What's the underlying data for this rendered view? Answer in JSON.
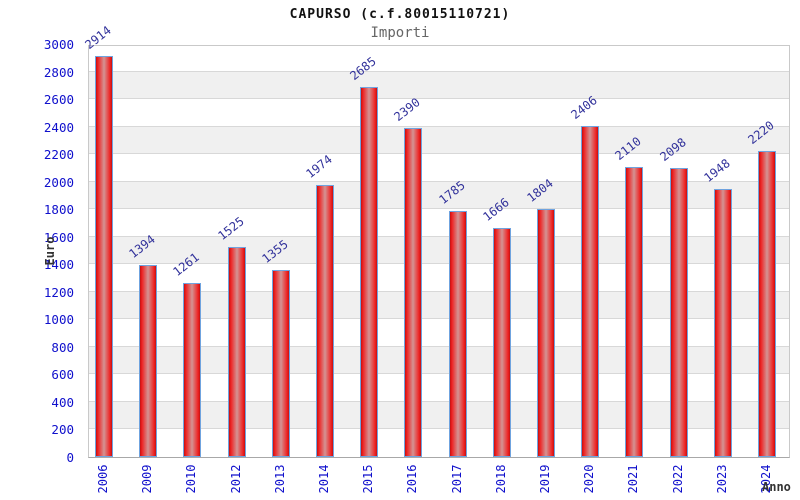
{
  "chart_data": {
    "type": "bar",
    "title": "CAPURSO (c.f.80015110721)",
    "subtitle": "Importi",
    "ylabel": "Euro",
    "xlabel": "Anno",
    "categories": [
      "2006",
      "2009",
      "2010",
      "2012",
      "2013",
      "2014",
      "2015",
      "2016",
      "2017",
      "2018",
      "2019",
      "2020",
      "2021",
      "2022",
      "2023",
      "2024"
    ],
    "values": [
      2914,
      1394,
      1261,
      1525,
      1355,
      1974,
      2685,
      2390,
      1785,
      1666,
      1804,
      2406,
      2110,
      2098,
      1948,
      2220
    ],
    "ylim": [
      0,
      3000
    ],
    "yticks": [
      0,
      200,
      400,
      600,
      800,
      1000,
      1200,
      1400,
      1600,
      1800,
      2000,
      2200,
      2400,
      2600,
      2800,
      3000
    ],
    "grid": true,
    "legend_position": "none",
    "colors": {
      "bar_edge_red": "#c41010",
      "bar_bright_red": "#ee2222",
      "bar_mid_red": "#d49393",
      "bar_border_blue": "#6fa3df",
      "axis_tick_blue": "#1010cc",
      "value_label_blue": "#32329b",
      "band_gray": "#f0f0f0",
      "grid_line_gray": "#d8d8d8",
      "title_black": "#111111",
      "subtitle_gray": "#666666",
      "axis_title_dark": "#333333"
    }
  }
}
